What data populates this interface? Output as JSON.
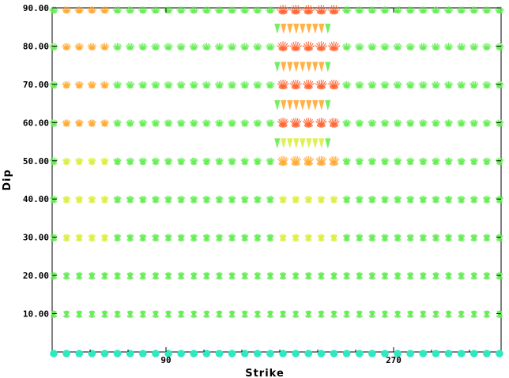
{
  "chart_data": {
    "type": "scatter",
    "title": "",
    "xlabel": "Strike",
    "ylabel": "Dip",
    "xlim": [
      0,
      355
    ],
    "ylim": [
      0,
      90
    ],
    "grid": false,
    "x_ticks": [
      {
        "value": 90,
        "label": "90"
      },
      {
        "value": 270,
        "label": "270"
      }
    ],
    "y_ticks": [
      {
        "value": 10,
        "label": "10.00"
      },
      {
        "value": 20,
        "label": "20.00"
      },
      {
        "value": 30,
        "label": "30.00"
      },
      {
        "value": 40,
        "label": "40.00"
      },
      {
        "value": 50,
        "label": "50.00"
      },
      {
        "value": 60,
        "label": "60.00"
      },
      {
        "value": 70,
        "label": "70.00"
      },
      {
        "value": 80,
        "label": "80.00"
      },
      {
        "value": 90,
        "label": "90.00"
      }
    ],
    "strike_start": 0,
    "strike_step": 10,
    "strike_count": 36,
    "dip_rows": [
      0,
      10,
      20,
      30,
      40,
      50,
      60,
      70,
      80,
      90
    ],
    "secondary_dip_rows": [
      55,
      65,
      75,
      85
    ],
    "secondary_strike_range": [
      180,
      220
    ],
    "colors": {
      "low": "#2ee8c0",
      "mid": "#66ee55",
      "midhigh": "#ddee44",
      "high": "#ffaa33",
      "peak": "#ff6633"
    }
  }
}
